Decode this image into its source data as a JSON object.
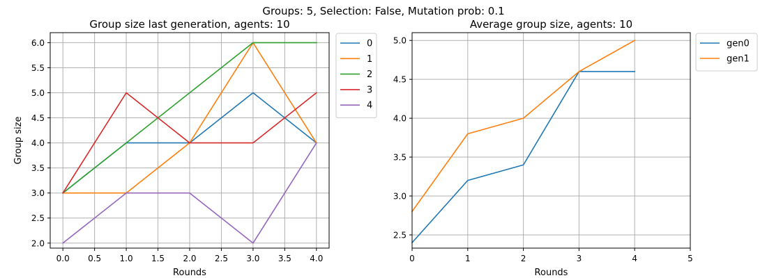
{
  "figure": {
    "suptitle": "Groups: 5, Selection: False, Mutation prob: 0.1"
  },
  "chart_data": [
    {
      "type": "line",
      "title": "Group size last generation, agents: 10",
      "xlabel": "Rounds",
      "ylabel": "Group size",
      "xlim": [
        -0.2,
        4.2
      ],
      "ylim": [
        1.9,
        6.2
      ],
      "xticks": [
        0.0,
        0.5,
        1.0,
        1.5,
        2.0,
        2.5,
        3.0,
        3.5,
        4.0
      ],
      "xtick_labels": [
        "0.0",
        "0.5",
        "1.0",
        "1.5",
        "2.0",
        "2.5",
        "3.0",
        "3.5",
        "4.0"
      ],
      "yticks": [
        2.0,
        2.5,
        3.0,
        3.5,
        4.0,
        4.5,
        5.0,
        5.5,
        6.0
      ],
      "ytick_labels": [
        "2.0",
        "2.5",
        "3.0",
        "3.5",
        "4.0",
        "4.5",
        "5.0",
        "5.5",
        "6.0"
      ],
      "grid": true,
      "legend_position": "outside-right",
      "x": [
        0,
        1,
        2,
        3,
        4
      ],
      "series": [
        {
          "name": "0",
          "color": "#1f77b4",
          "values": [
            3,
            4,
            4,
            5,
            4
          ]
        },
        {
          "name": "1",
          "color": "#ff7f0e",
          "values": [
            3,
            3,
            4,
            6,
            4
          ]
        },
        {
          "name": "2",
          "color": "#2ca02c",
          "values": [
            3,
            4,
            5,
            6,
            6
          ]
        },
        {
          "name": "3",
          "color": "#d62728",
          "values": [
            3,
            5,
            4,
            4,
            5
          ]
        },
        {
          "name": "4",
          "color": "#9467bd",
          "values": [
            2,
            3,
            3,
            2,
            4
          ]
        }
      ]
    },
    {
      "type": "line",
      "title": "Average group size, agents: 10",
      "xlabel": "Rounds",
      "ylabel": "",
      "xlim": [
        0,
        5
      ],
      "ylim": [
        2.33,
        5.1
      ],
      "xticks": [
        0,
        1,
        2,
        3,
        4,
        5
      ],
      "xtick_labels": [
        "0",
        "1",
        "2",
        "3",
        "4",
        "5"
      ],
      "yticks": [
        2.5,
        3.0,
        3.5,
        4.0,
        4.5,
        5.0
      ],
      "ytick_labels": [
        "2.5",
        "3.0",
        "3.5",
        "4.0",
        "4.5",
        "5.0"
      ],
      "grid": true,
      "legend_position": "outside-right",
      "x": [
        0,
        1,
        2,
        3,
        4
      ],
      "series": [
        {
          "name": "gen0",
          "color": "#1f77b4",
          "values": [
            2.4,
            3.2,
            3.4,
            4.6,
            4.6
          ]
        },
        {
          "name": "gen1",
          "color": "#ff7f0e",
          "values": [
            2.8,
            3.8,
            4.0,
            4.6,
            5.0
          ]
        }
      ]
    }
  ]
}
